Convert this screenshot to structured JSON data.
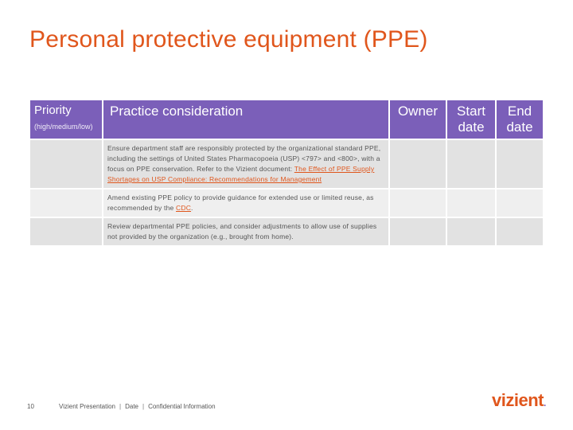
{
  "slide": {
    "title": "Personal protective equipment (PPE)",
    "page_number": "10",
    "footer": [
      "Vizient Presentation",
      "Date",
      "Confidential Information"
    ],
    "footer_separator": "|",
    "logo_text": "vizient",
    "logo_mark": "."
  },
  "table": {
    "headers": {
      "priority": "Priority",
      "priority_sub": "(high/medium/low)",
      "practice": "Practice consideration",
      "owner": "Owner",
      "start": "Start date",
      "end": "End date"
    },
    "rows": [
      {
        "practice": "Ensure department staff are responsibly protected by the organizational standard PPE, including the settings of United States Pharmacopoeia (USP) <797> and <800>, with a focus on PPE conservation. Refer to the Vizient document: ",
        "link": "The Effect of PPE Supply Shortages on USP Compliance: Recommendations for Management",
        "suffix": ""
      },
      {
        "practice": "Amend existing PPE policy to provide guidance for extended use or limited reuse, as recommended by the ",
        "link": "CDC",
        "suffix": "."
      },
      {
        "practice": "Review departmental PPE policies, and consider adjustments to allow use of supplies not provided by the organization (e.g., brought from home).",
        "link": "",
        "suffix": ""
      }
    ]
  },
  "colors": {
    "accent_orange": "#e0561c",
    "header_purple": "#7b5fb9",
    "row_gray": "#e2e2e2",
    "row_gray_light": "#efefef"
  }
}
